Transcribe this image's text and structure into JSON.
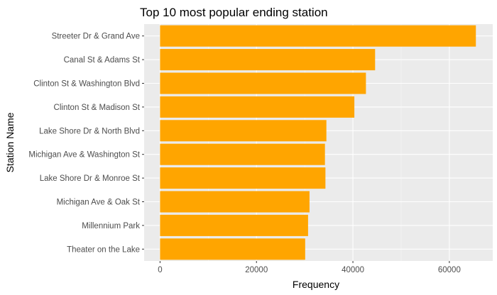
{
  "chart_data": {
    "type": "bar",
    "orientation": "horizontal",
    "title": "Top 10 most popular ending station",
    "xlabel": "Frequency",
    "ylabel": "Station Name",
    "categories": [
      "Streeter Dr & Grand Ave",
      "Canal St & Adams St",
      "Clinton St & Washington Blvd",
      "Clinton St & Madison St",
      "Lake Shore Dr & North Blvd",
      "Michigan Ave & Washington St",
      "Lake Shore Dr & Monroe St",
      "Michigan Ave & Oak St",
      "Millennium Park",
      "Theater on the Lake"
    ],
    "values": [
      65500,
      44600,
      42700,
      40300,
      34500,
      34200,
      34300,
      31000,
      30700,
      30100
    ],
    "xlim": [
      -3300,
      69000
    ],
    "xticks": [
      0,
      20000,
      40000,
      60000
    ],
    "xtick_labels": [
      "0",
      "20000",
      "40000",
      "60000"
    ],
    "grid": true,
    "colors": {
      "bar": "#FFA500",
      "panel_background": "#EBEBEB",
      "grid_major": "#FFFFFF",
      "grid_minor": "#F5F5F5",
      "tick_text": "#4D4D4D",
      "tick_mark": "#333333"
    }
  }
}
